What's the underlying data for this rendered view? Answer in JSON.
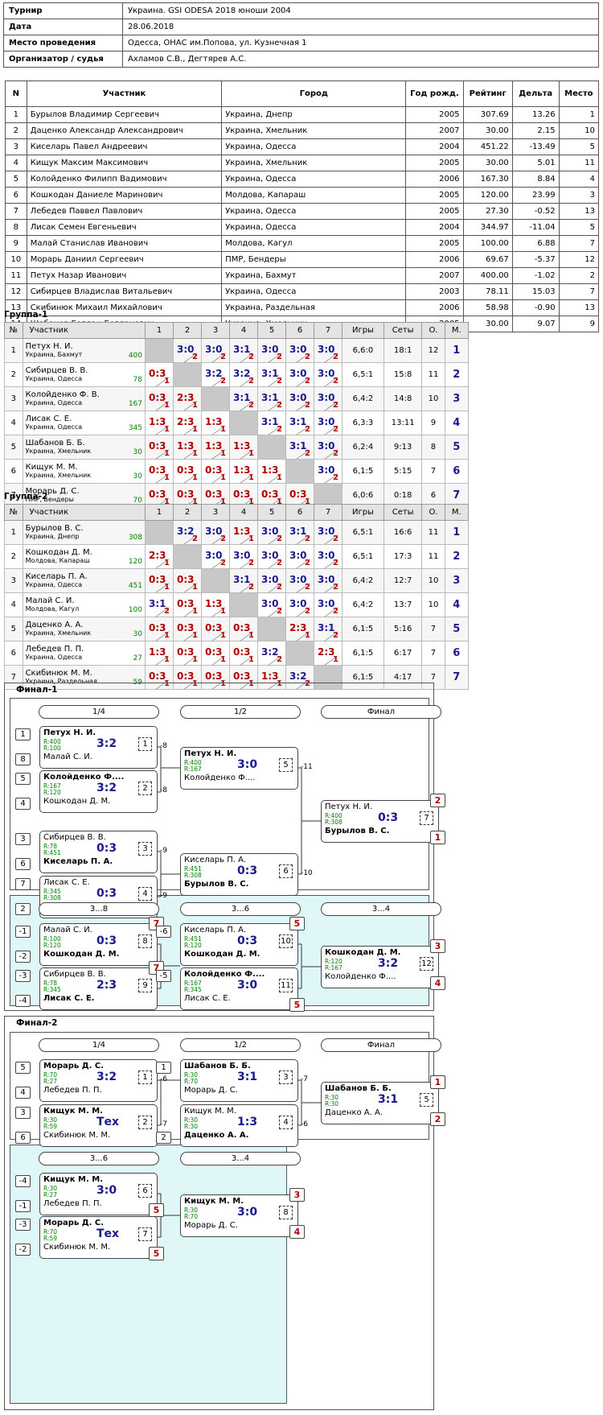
{
  "info": {
    "rows": [
      [
        "Турнир",
        "Украина. GSI ODESA 2018 юноши 2004"
      ],
      [
        "Дата",
        "28.06.2018"
      ],
      [
        "Место проведения",
        "Одесса, ОНАС им.Попова, ул. Кузнечная 1"
      ],
      [
        "Организатор / судья",
        "Ахламов С.В., Дегтярев А.С."
      ]
    ]
  },
  "players": {
    "headers": [
      "N",
      "Участник",
      "Город",
      "Год рожд.",
      "Рейтинг",
      "Дельта",
      "Место"
    ],
    "rows": [
      [
        "1",
        "Бурылов Владимир Сергеевич",
        "Украина, Днепр",
        "2005",
        "307.69",
        "13.26",
        "1"
      ],
      [
        "2",
        "Даценко Александр Александрович",
        "Украина, Хмельник",
        "2007",
        "30.00",
        "2.15",
        "10"
      ],
      [
        "3",
        "Киселарь Павел Андреевич",
        "Украина, Одесса",
        "2004",
        "451.22",
        "-13.49",
        "5"
      ],
      [
        "4",
        "Кищук Максим Максимович",
        "Украина, Хмельник",
        "2005",
        "30.00",
        "5.01",
        "11"
      ],
      [
        "5",
        "Колойденко Филипп Вадимович",
        "Украина, Одесса",
        "2006",
        "167.30",
        "8.84",
        "4"
      ],
      [
        "6",
        "Кошкодан Даниеле Маринович",
        "Молдова, Капараш",
        "2005",
        "120.00",
        "23.99",
        "3"
      ],
      [
        "7",
        "Лебедев Паввел Павлович",
        "Украина, Одесса",
        "2005",
        "27.30",
        "-0.52",
        "13"
      ],
      [
        "8",
        "Лисак Семен Евгеньевич",
        "Украина, Одесса",
        "2004",
        "344.97",
        "-11.04",
        "5"
      ],
      [
        "9",
        "Малай Станислав Иванович",
        "Молдова, Кагул",
        "2005",
        "100.00",
        "6.88",
        "7"
      ],
      [
        "10",
        "Морарь Даниил Сергеевич",
        "ПМР, Бендеры",
        "2006",
        "69.67",
        "-5.37",
        "12"
      ],
      [
        "11",
        "Петух Назар Иванович",
        "Украина, Бахмут",
        "2007",
        "400.00",
        "-1.02",
        "2"
      ],
      [
        "12",
        "Сибирцев Владислав Витальевич",
        "Украина, Одесса",
        "2003",
        "78.11",
        "15.03",
        "7"
      ],
      [
        "13",
        "Скибинюк Михаил Михайлович",
        "Украина, Раздельная",
        "2006",
        "58.98",
        "-0.90",
        "13"
      ],
      [
        "14",
        "Шабанов Богдан Богданович",
        "Украина, Хмельник",
        "2005",
        "30.00",
        "9.07",
        "9"
      ]
    ]
  },
  "gheaders": [
    "№",
    "Участник",
    "1",
    "2",
    "3",
    "4",
    "5",
    "6",
    "7",
    "Игры",
    "Сеты",
    "О.",
    "М."
  ],
  "groups": [
    {
      "title": "Группа-1",
      "rows": [
        {
          "n": "1",
          "name": "Петух Н. И.",
          "city": "Украина, Бахмут",
          "rating": "400",
          "cells": [
            null,
            [
              "3:0",
              "2",
              "w"
            ],
            [
              "3:0",
              "2",
              "w"
            ],
            [
              "3:1",
              "2",
              "w"
            ],
            [
              "3:0",
              "2",
              "w"
            ],
            [
              "3:0",
              "2",
              "w"
            ],
            [
              "3:0",
              "2",
              "w"
            ]
          ],
          "games": "6,6:0",
          "sets": "18:1",
          "pts": "12",
          "place": "1"
        },
        {
          "n": "2",
          "name": "Сибирцев В. В.",
          "city": "Украина, Одесса",
          "rating": "78",
          "cells": [
            [
              "0:3",
              "1",
              "l"
            ],
            null,
            [
              "3:2",
              "2",
              "w"
            ],
            [
              "3:2",
              "2",
              "w"
            ],
            [
              "3:1",
              "2",
              "w"
            ],
            [
              "3:0",
              "2",
              "w"
            ],
            [
              "3:0",
              "2",
              "w"
            ]
          ],
          "games": "6,5:1",
          "sets": "15:8",
          "pts": "11",
          "place": "2"
        },
        {
          "n": "3",
          "name": "Колойденко Ф. В.",
          "city": "Украина, Одесса",
          "rating": "167",
          "cells": [
            [
              "0:3",
              "1",
              "l"
            ],
            [
              "2:3",
              "1",
              "l"
            ],
            null,
            [
              "3:1",
              "2",
              "w"
            ],
            [
              "3:1",
              "2",
              "w"
            ],
            [
              "3:0",
              "2",
              "w"
            ],
            [
              "3:0",
              "2",
              "w"
            ]
          ],
          "games": "6,4:2",
          "sets": "14:8",
          "pts": "10",
          "place": "3"
        },
        {
          "n": "4",
          "name": "Лисак С. Е.",
          "city": "Украина, Одесса",
          "rating": "345",
          "cells": [
            [
              "1:3",
              "1",
              "l"
            ],
            [
              "2:3",
              "1",
              "l"
            ],
            [
              "1:3",
              "1",
              "l"
            ],
            null,
            [
              "3:1",
              "2",
              "w"
            ],
            [
              "3:1",
              "2",
              "w"
            ],
            [
              "3:0",
              "2",
              "w"
            ]
          ],
          "games": "6,3:3",
          "sets": "13:11",
          "pts": "9",
          "place": "4"
        },
        {
          "n": "5",
          "name": "Шабанов Б. Б.",
          "city": "Украина, Хмельник",
          "rating": "30",
          "cells": [
            [
              "0:3",
              "1",
              "l"
            ],
            [
              "1:3",
              "1",
              "l"
            ],
            [
              "1:3",
              "1",
              "l"
            ],
            [
              "1:3",
              "1",
              "l"
            ],
            null,
            [
              "3:1",
              "2",
              "w"
            ],
            [
              "3:0",
              "2",
              "w"
            ]
          ],
          "games": "6,2:4",
          "sets": "9:13",
          "pts": "8",
          "place": "5"
        },
        {
          "n": "6",
          "name": "Кищук М. М.",
          "city": "Украина, Хмельник",
          "rating": "30",
          "cells": [
            [
              "0:3",
              "1",
              "l"
            ],
            [
              "0:3",
              "1",
              "l"
            ],
            [
              "0:3",
              "1",
              "l"
            ],
            [
              "1:3",
              "1",
              "l"
            ],
            [
              "1:3",
              "1",
              "l"
            ],
            null,
            [
              "3:0",
              "2",
              "w"
            ]
          ],
          "games": "6,1:5",
          "sets": "5:15",
          "pts": "7",
          "place": "6"
        },
        {
          "n": "7",
          "name": "Морарь Д. С.",
          "city": "ПМР, Бендеры",
          "rating": "70",
          "cells": [
            [
              "0:3",
              "1",
              "l"
            ],
            [
              "0:3",
              "1",
              "l"
            ],
            [
              "0:3",
              "1",
              "l"
            ],
            [
              "0:3",
              "1",
              "l"
            ],
            [
              "0:3",
              "1",
              "l"
            ],
            [
              "0:3",
              "1",
              "l"
            ],
            null
          ],
          "games": "6,0:6",
          "sets": "0:18",
          "pts": "6",
          "place": "7"
        }
      ]
    },
    {
      "title": "Группа-2",
      "rows": [
        {
          "n": "1",
          "name": "Бурылов В. С.",
          "city": "Украина, Днепр",
          "rating": "308",
          "cells": [
            null,
            [
              "3:2",
              "2",
              "w"
            ],
            [
              "3:0",
              "2",
              "w"
            ],
            [
              "1:3",
              "1",
              "l"
            ],
            [
              "3:0",
              "2",
              "w"
            ],
            [
              "3:1",
              "2",
              "w"
            ],
            [
              "3:0",
              "2",
              "w"
            ]
          ],
          "games": "6,5:1",
          "sets": "16:6",
          "pts": "11",
          "place": "1"
        },
        {
          "n": "2",
          "name": "Кошкодан Д. М.",
          "city": "Молдова, Капараш",
          "rating": "120",
          "cells": [
            [
              "2:3",
              "1",
              "l"
            ],
            null,
            [
              "3:0",
              "2",
              "w"
            ],
            [
              "3:0",
              "2",
              "w"
            ],
            [
              "3:0",
              "2",
              "w"
            ],
            [
              "3:0",
              "2",
              "w"
            ],
            [
              "3:0",
              "2",
              "w"
            ]
          ],
          "games": "6,5:1",
          "sets": "17:3",
          "pts": "11",
          "place": "2"
        },
        {
          "n": "3",
          "name": "Киселарь П. А.",
          "city": "Украина, Одесса",
          "rating": "451",
          "cells": [
            [
              "0:3",
              "1",
              "l"
            ],
            [
              "0:3",
              "1",
              "l"
            ],
            null,
            [
              "3:1",
              "2",
              "w"
            ],
            [
              "3:0",
              "2",
              "w"
            ],
            [
              "3:0",
              "2",
              "w"
            ],
            [
              "3:0",
              "2",
              "w"
            ]
          ],
          "games": "6,4:2",
          "sets": "12:7",
          "pts": "10",
          "place": "3"
        },
        {
          "n": "4",
          "name": "Малай С. И.",
          "city": "Молдова, Кагул",
          "rating": "100",
          "cells": [
            [
              "3:1",
              "2",
              "w"
            ],
            [
              "0:3",
              "1",
              "l"
            ],
            [
              "1:3",
              "1",
              "l"
            ],
            null,
            [
              "3:0",
              "2",
              "w"
            ],
            [
              "3:0",
              "2",
              "w"
            ],
            [
              "3:0",
              "2",
              "w"
            ]
          ],
          "games": "6,4:2",
          "sets": "13:7",
          "pts": "10",
          "place": "4"
        },
        {
          "n": "5",
          "name": "Даценко А. А.",
          "city": "Украина, Хмельник",
          "rating": "30",
          "cells": [
            [
              "0:3",
              "1",
              "l"
            ],
            [
              "0:3",
              "1",
              "l"
            ],
            [
              "0:3",
              "1",
              "l"
            ],
            [
              "0:3",
              "1",
              "l"
            ],
            null,
            [
              "2:3",
              "1",
              "l"
            ],
            [
              "3:1",
              "2",
              "w"
            ]
          ],
          "games": "6,1:5",
          "sets": "5:16",
          "pts": "7",
          "place": "5"
        },
        {
          "n": "6",
          "name": "Лебедев П. П.",
          "city": "Украина, Одесса",
          "rating": "27",
          "cells": [
            [
              "1:3",
              "1",
              "l"
            ],
            [
              "0:3",
              "1",
              "l"
            ],
            [
              "0:3",
              "1",
              "l"
            ],
            [
              "0:3",
              "1",
              "l"
            ],
            [
              "3:2",
              "2",
              "w"
            ],
            null,
            [
              "2:3",
              "1",
              "l"
            ]
          ],
          "games": "6,1:5",
          "sets": "6:17",
          "pts": "7",
          "place": "6"
        },
        {
          "n": "7",
          "name": "Скибинюк М. М.",
          "city": "Украина, Раздельная",
          "rating": "59",
          "cells": [
            [
              "0:3",
              "1",
              "l"
            ],
            [
              "0:3",
              "1",
              "l"
            ],
            [
              "0:3",
              "1",
              "l"
            ],
            [
              "0:3",
              "1",
              "l"
            ],
            [
              "1:3",
              "1",
              "l"
            ],
            [
              "3:2",
              "2",
              "w"
            ],
            null
          ],
          "games": "6,1:5",
          "sets": "4:17",
          "pts": "7",
          "place": "7"
        }
      ]
    }
  ],
  "final1": {
    "title": "Финал-1",
    "rounds": [
      "1/4",
      "1/2",
      "Финал"
    ],
    "rounds2": [
      "3...8",
      "3...6",
      "3...4"
    ],
    "m1": {
      "p1": "Петух Н. И.",
      "r1": "R:400",
      "p2": "Малай С. И.",
      "r2": "R:100",
      "score": "3:2",
      "num": "1",
      "w": 1,
      "s1": "1",
      "s2": "8",
      "to": "-8"
    },
    "m2": {
      "p1": "Колойденко Ф....",
      "r1": "R:167",
      "p2": "Кошкодан Д. М.",
      "r2": "R:120",
      "score": "3:2",
      "num": "2",
      "w": 1,
      "s1": "5",
      "s2": "4",
      "to": "-8"
    },
    "m3": {
      "p1": "Сибирцев В. В.",
      "r1": "R:78",
      "p2": "Киселарь П. А.",
      "r2": "R:451",
      "score": "0:3",
      "num": "3",
      "w": 2,
      "s1": "3",
      "s2": "6",
      "to": "-9"
    },
    "m4": {
      "p1": "Лисак С. Е.",
      "r1": "R:345",
      "p2": "Бурылов В. С.",
      "r2": "R:308",
      "score": "0:3",
      "num": "4",
      "w": 2,
      "s1": "7",
      "s2": "2",
      "to": "-9"
    },
    "m5": {
      "p1": "Петух Н. И.",
      "r1": "R:400",
      "p2": "Колойденко Ф....",
      "r2": "R:167",
      "score": "3:0",
      "num": "5",
      "w": 1,
      "to": "-11"
    },
    "m6": {
      "p1": "Киселарь П. А.",
      "r1": "R:451",
      "p2": "Бурылов В. С.",
      "r2": "R:308",
      "score": "0:3",
      "num": "6",
      "w": 2,
      "to": "-10"
    },
    "m7": {
      "p1": "Петух Н. И.",
      "r1": "R:400",
      "p2": "Бурылов В. С.",
      "r2": "R:308",
      "score": "0:3",
      "num": "7",
      "w": 2,
      "place1": "2",
      "place2": "1"
    },
    "m8": {
      "p1": "Малай С. И.",
      "r1": "R:100",
      "p2": "Кошкодан Д. М.",
      "r2": "R:120",
      "score": "0:3",
      "num": "8",
      "w": 2,
      "s1": "-1",
      "s2": "-2",
      "place1": "7"
    },
    "m9": {
      "p1": "Сибирцев В. В.",
      "r1": "R:78",
      "p2": "Лисак С. Е.",
      "r2": "R:345",
      "score": "2:3",
      "num": "9",
      "w": 2,
      "s1": "-3",
      "s2": "-4",
      "place1": "7"
    },
    "m10": {
      "p1": "Киселарь П. А.",
      "r1": "R:451",
      "p2": "Кошкодан Д. М.",
      "r2": "R:120",
      "score": "0:3",
      "num": "10",
      "w": 2,
      "s1": "-6",
      "place1": "5"
    },
    "m11": {
      "p1": "Колойденко Ф....",
      "r1": "R:167",
      "p2": "Лисак С. Е.",
      "r2": "R:345",
      "score": "3:0",
      "num": "11",
      "w": 1,
      "s1": "-5",
      "place2": "5"
    },
    "m12": {
      "p1": "Кошкодан Д. М.",
      "r1": "R:120",
      "p2": "Колойденко Ф....",
      "r2": "R:167",
      "score": "3:2",
      "num": "12",
      "w": 1,
      "place1": "3",
      "place2": "4"
    }
  },
  "final2": {
    "title": "Финал-2",
    "rounds": [
      "1/4",
      "1/2",
      "Финал"
    ],
    "rounds2": [
      "3...6",
      "3...4"
    ],
    "m1": {
      "p1": "Морарь Д. С.",
      "r1": "R:70",
      "p2": "Лебедев П. П.",
      "r2": "R:27",
      "score": "3:2",
      "num": "1",
      "w": 1,
      "s1": "5",
      "s2": "4",
      "to": "-6"
    },
    "m2": {
      "p1": "Кищук М. М.",
      "r1": "R:30",
      "p2": "Скибинюк М. М.",
      "r2": "R:59",
      "score": "Тех",
      "num": "2",
      "w": 1,
      "s1": "3",
      "s2": "6",
      "to": "-7"
    },
    "m3": {
      "p1": "Шабанов Б. Б.",
      "r1": "R:30",
      "p2": "Морарь Д. С.",
      "r2": "R:70",
      "score": "3:1",
      "num": "3",
      "w": 1,
      "s1": "1",
      "to": "-7"
    },
    "m4": {
      "p1": "Кищук М. М.",
      "r1": "R:30",
      "p2": "Даценко А. А.",
      "r2": "R:30",
      "score": "1:3",
      "num": "4",
      "w": 2,
      "s2": "2",
      "to": "-6"
    },
    "m5": {
      "p1": "Шабанов Б. Б.",
      "r1": "R:30",
      "p2": "Даценко А. А.",
      "r2": "R:30",
      "score": "3:1",
      "num": "5",
      "w": 1,
      "place1": "1",
      "place2": "2"
    },
    "m6": {
      "p1": "Кищук М. М.",
      "r1": "R:30",
      "p2": "Лебедев П. П.",
      "r2": "R:27",
      "score": "3:0",
      "num": "6",
      "w": 1,
      "s1": "-4",
      "s2": "-1",
      "place2": "5"
    },
    "m7": {
      "p1": "Морарь Д. С.",
      "r1": "R:70",
      "p2": "Скибинюк М. М.",
      "r2": "R:59",
      "score": "Тех",
      "num": "7",
      "w": 1,
      "s1": "-3",
      "s2": "-2",
      "place2": "5"
    },
    "m8": {
      "p1": "Кищук М. М.",
      "r1": "R:30",
      "p2": "Морарь Д. С.",
      "r2": "R:70",
      "score": "3:0",
      "num": "8",
      "w": 1,
      "place1": "3",
      "place2": "4"
    }
  }
}
